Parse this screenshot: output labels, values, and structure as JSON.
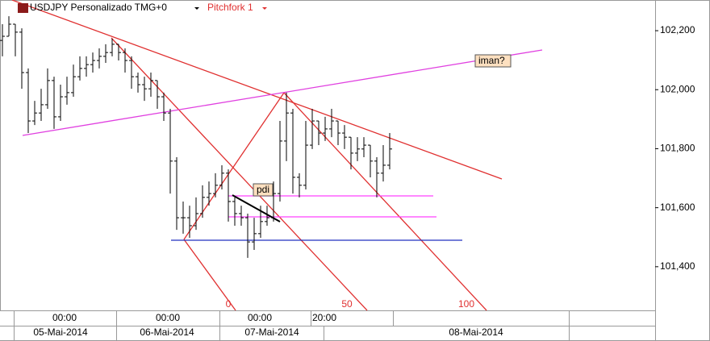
{
  "chart_data": {
    "type": "ohlc",
    "title": "USDJPY Personalizado TMG+0",
    "drawing_name": "Pitchfork 1",
    "color": "#000000",
    "open": [
      102167,
      102181,
      102222,
      102195,
      102058,
      101894,
      101921,
      101949,
      102031,
      101908,
      101976,
      101990,
      102044,
      102072,
      102085,
      102099,
      102113,
      102126,
      102154,
      102126,
      102099,
      102044,
      102017,
      102003,
      102031,
      101976,
      101921,
      101758,
      101566,
      101566,
      101539,
      101580,
      101635,
      101648,
      101676,
      101717,
      101621,
      101580,
      101566,
      101484,
      101512,
      101553,
      101566,
      101648,
      101826,
      101921,
      101703,
      101676,
      101812,
      101894,
      101853,
      101867,
      101894,
      101853,
      101839,
      101785,
      101799,
      101812,
      101758,
      101717,
      101744
    ],
    "high": [
      102222,
      102249,
      102222,
      102208,
      102072,
      101962,
      102003,
      102072,
      102044,
      102017,
      102044,
      102085,
      102113,
      102113,
      102126,
      102140,
      102154,
      102173,
      102154,
      102140,
      102113,
      102058,
      102044,
      102058,
      102031,
      101990,
      101935,
      101771,
      101621,
      101607,
      101635,
      101676,
      101689,
      101717,
      101744,
      101730,
      101635,
      101607,
      101580,
      101566,
      101607,
      101607,
      101689,
      101894,
      101990,
      101935,
      101717,
      101894,
      101935,
      101894,
      101908,
      101935,
      101894,
      101880,
      101839,
      101839,
      101839,
      101812,
      101771,
      101812,
      101853
    ],
    "low": [
      102113,
      102181,
      102113,
      102003,
      101853,
      101880,
      101894,
      101935,
      101867,
      101894,
      101949,
      101976,
      102031,
      102044,
      102058,
      102072,
      102091,
      102113,
      102099,
      102058,
      102003,
      101990,
      101962,
      101976,
      101935,
      101894,
      101648,
      101525,
      101512,
      101498,
      101525,
      101566,
      101607,
      101635,
      101662,
      101553,
      101539,
      101539,
      101430,
      101457,
      101498,
      101539,
      101553,
      101621,
      101758,
      101648,
      101635,
      101662,
      101799,
      101812,
      101826,
      101839,
      101812,
      101799,
      101730,
      101758,
      101771,
      101703,
      101635,
      101689,
      101730
    ],
    "close": [
      102181,
      102222,
      102195,
      102058,
      101894,
      101921,
      101949,
      102031,
      101908,
      101976,
      101990,
      102044,
      102072,
      102085,
      102099,
      102113,
      102126,
      102154,
      102126,
      102099,
      102044,
      102017,
      102003,
      102031,
      101976,
      101921,
      101758,
      101566,
      101566,
      101539,
      101580,
      101635,
      101648,
      101676,
      101717,
      101621,
      101580,
      101566,
      101484,
      101512,
      101553,
      101566,
      101648,
      101826,
      101921,
      101703,
      101676,
      101812,
      101894,
      101853,
      101867,
      101894,
      101853,
      101839,
      101785,
      101799,
      101812,
      101758,
      101717,
      101744,
      101799
    ],
    "ylim": [
      101252,
      102304
    ],
    "yticks": [
      {
        "value": 101400,
        "label": "101,400"
      },
      {
        "value": 101600,
        "label": "101,600"
      },
      {
        "value": 101800,
        "label": "101,800"
      },
      {
        "value": 102000,
        "label": "102,000"
      },
      {
        "value": 102200,
        "label": "102,200"
      }
    ],
    "time_labels": [
      "00:00",
      "00:00",
      "00:00",
      "20:00"
    ],
    "date_labels": [
      "05-Mai-2014",
      "06-Mai-2014",
      "07-Mai-2014",
      "08-Mai-2014"
    ],
    "pitchfork_levels": [
      "0",
      "50",
      "100"
    ],
    "notes": [
      "pdi",
      "iman?"
    ]
  }
}
